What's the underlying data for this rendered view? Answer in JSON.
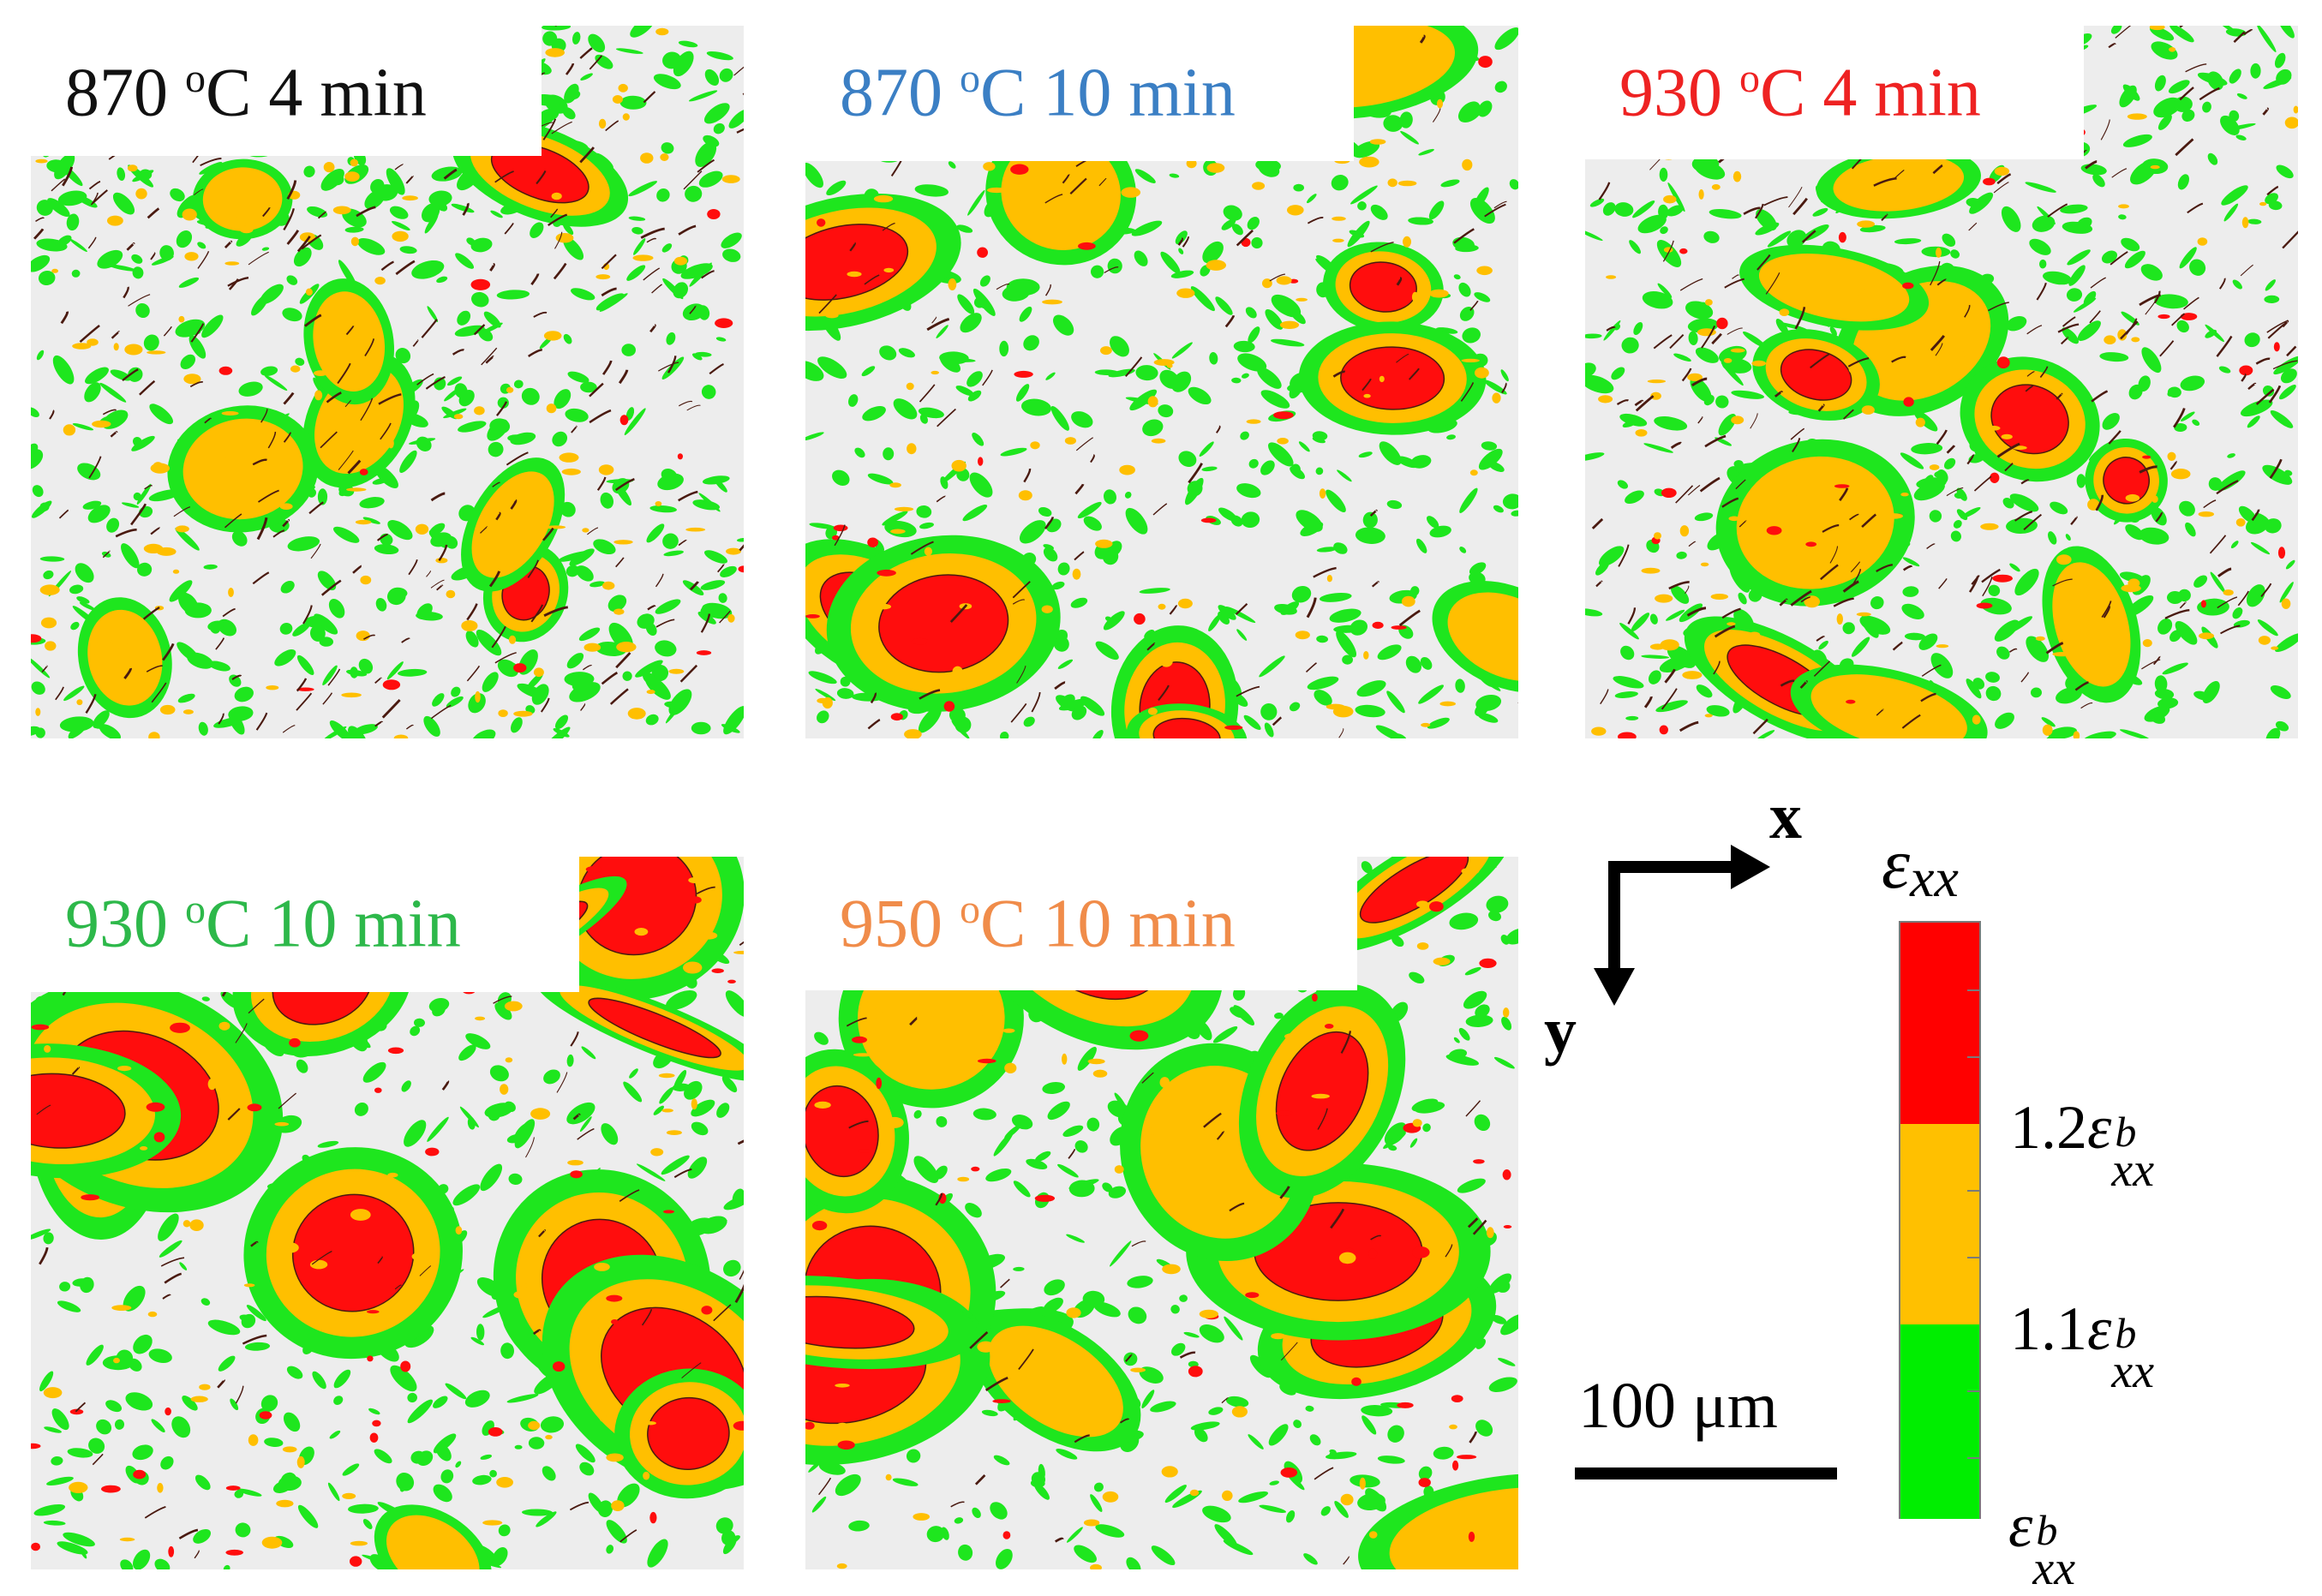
{
  "panels": [
    {
      "label": "870",
      "unit": "C 4 min",
      "deg": "o",
      "color": "#111111",
      "density": 0.58,
      "red": 0.12,
      "dark": 0.35,
      "blob": 0.25
    },
    {
      "label": "870",
      "unit": "C 10 min",
      "deg": "o",
      "color": "#3b7fc4",
      "density": 0.5,
      "red": 0.22,
      "dark": 0.12,
      "blob": 0.45
    },
    {
      "label": "930",
      "unit": "C 4 min",
      "deg": "o",
      "color": "#ee2222",
      "density": 0.52,
      "red": 0.18,
      "dark": 0.32,
      "blob": 0.35
    },
    {
      "label": "930",
      "unit": "C 10 min",
      "deg": "o",
      "color": "#2db84a",
      "density": 0.44,
      "red": 0.42,
      "dark": 0.08,
      "blob": 0.7
    },
    {
      "label": "950",
      "unit": "C 10 min",
      "deg": "o",
      "color": "#f08c4a",
      "density": 0.4,
      "red": 0.45,
      "dark": 0.06,
      "blob": 0.75
    }
  ],
  "axes": {
    "x": "x",
    "y": "y"
  },
  "colorbar": {
    "title": "ε",
    "title_sub": "xx",
    "colors": {
      "high": "#ff0000",
      "mid": "#ffc000",
      "low": "#00ee00"
    },
    "levels": [
      {
        "coef": "1.2",
        "sym": "ε",
        "sup": "b",
        "sub": "xx"
      },
      {
        "coef": "1.1",
        "sym": "ε",
        "sup": "b",
        "sub": "xx"
      },
      {
        "coef": "",
        "sym": "ε",
        "sup": "b",
        "sub": "xx"
      }
    ]
  },
  "scalebar": {
    "label": "100 μm"
  },
  "map_colors": {
    "background": "#ededed",
    "green": "#1ee61e",
    "orange": "#ffbf00",
    "red": "#ff0d0d",
    "dark": "#4a1a10"
  }
}
